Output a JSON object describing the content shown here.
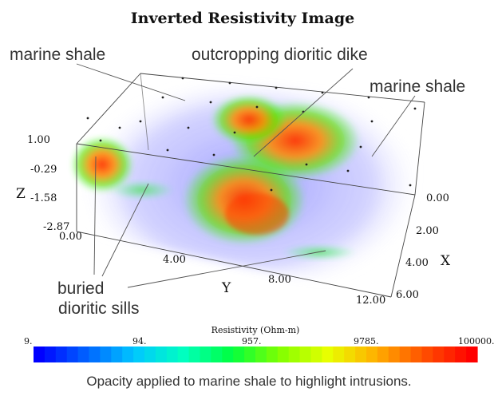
{
  "chart_data": {
    "type": "volume-3d",
    "title": "Inverted Resistivity Image",
    "axes": {
      "x": {
        "label": "X",
        "ticks": [
          "0.00",
          "2.00",
          "4.00",
          "6.00"
        ],
        "range": [
          0,
          6
        ]
      },
      "y": {
        "label": "Y",
        "ticks": [
          "0.00",
          "4.00",
          "8.00",
          "12.00"
        ],
        "range": [
          0,
          12
        ]
      },
      "z": {
        "label": "Z",
        "ticks": [
          "1.00",
          "-0.29",
          "-1.58",
          "-2.87"
        ],
        "range": [
          -2.87,
          1.0
        ]
      }
    },
    "annotations": [
      "marine shale",
      "outcropping dioritic dike",
      "marine shale",
      "buried",
      "dioritic sills"
    ],
    "colorbar": {
      "label": "Resistivity (Ohm-m)",
      "scale": "log",
      "ticks": [
        "9.",
        "94.",
        "957.",
        "9785.",
        "100000."
      ],
      "colors": [
        "#0000ff",
        "#0064ff",
        "#00c8ff",
        "#00ffc0",
        "#00ff40",
        "#80ff00",
        "#e8ff00",
        "#ffb000",
        "#ff5000",
        "#ff0000"
      ]
    },
    "caption": "Opacity applied to marine shale to highlight intrusions."
  }
}
